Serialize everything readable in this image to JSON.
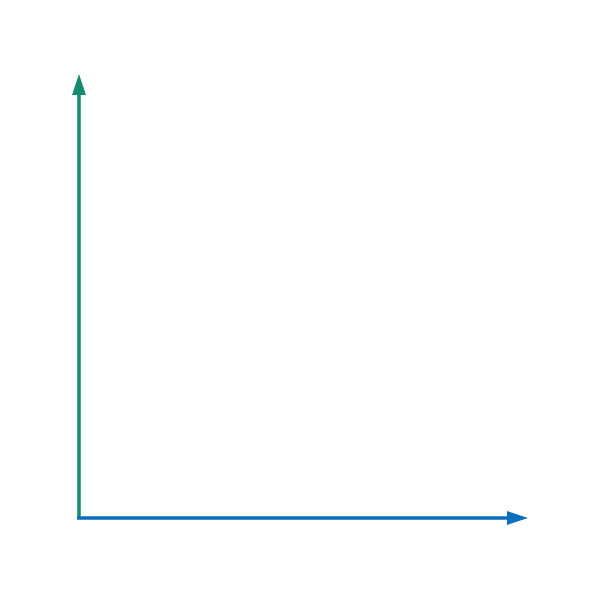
{
  "diagram": {
    "type": "coordinate-axes",
    "background": "#ffffff",
    "axes": {
      "x_axis": {
        "direction": "right",
        "color": "#0a6ebd",
        "has_arrowhead": true
      },
      "y_axis": {
        "direction": "up",
        "color": "#138a6e",
        "has_arrowhead": true
      }
    }
  }
}
